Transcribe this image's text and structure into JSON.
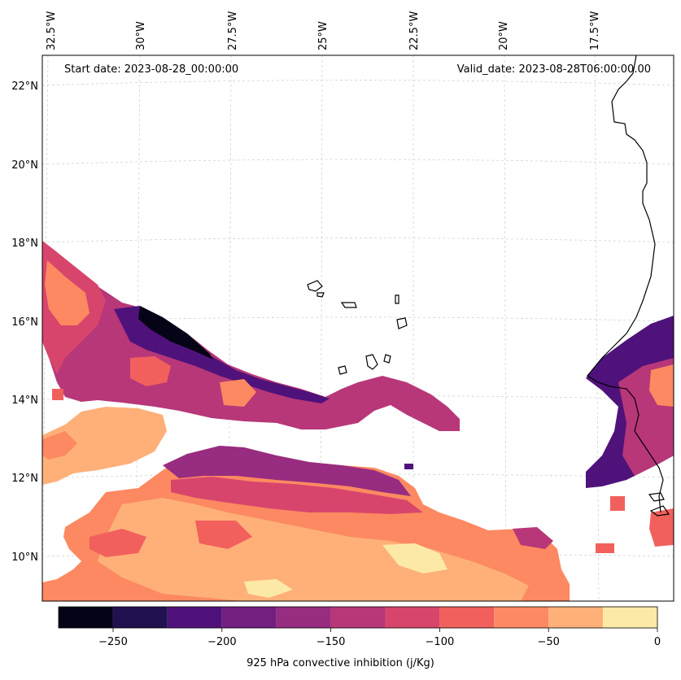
{
  "map": {
    "start_label": "Start date: 2023-08-28_00:00:00",
    "valid_label": "Valid_date: 2023-08-28T06:00:00.00",
    "lon_labels": [
      "32.5°W",
      "30°W",
      "27.5°W",
      "25°W",
      "22.5°W",
      "20°W",
      "17.5°W"
    ],
    "lat_labels": [
      "22°N",
      "20°N",
      "18°N",
      "16°N",
      "14°N",
      "12°N",
      "10°N"
    ],
    "colormap": "magma",
    "gridlines": true
  },
  "colorbar": {
    "label": "925 hPa convective inhibition (j/Kg)",
    "tick_labels": [
      "−250",
      "−200",
      "−150",
      "−100",
      "−50",
      "0"
    ],
    "levels": [
      -275,
      -250,
      -225,
      -200,
      -175,
      -150,
      -125,
      -100,
      -75,
      -50,
      -25,
      0
    ],
    "colors": [
      "#050416",
      "#221150",
      "#4f127b",
      "#721f81",
      "#972c80",
      "#b73779",
      "#d8456c",
      "#f1605d",
      "#fc8961",
      "#feb078",
      "#fde9a7"
    ]
  }
}
